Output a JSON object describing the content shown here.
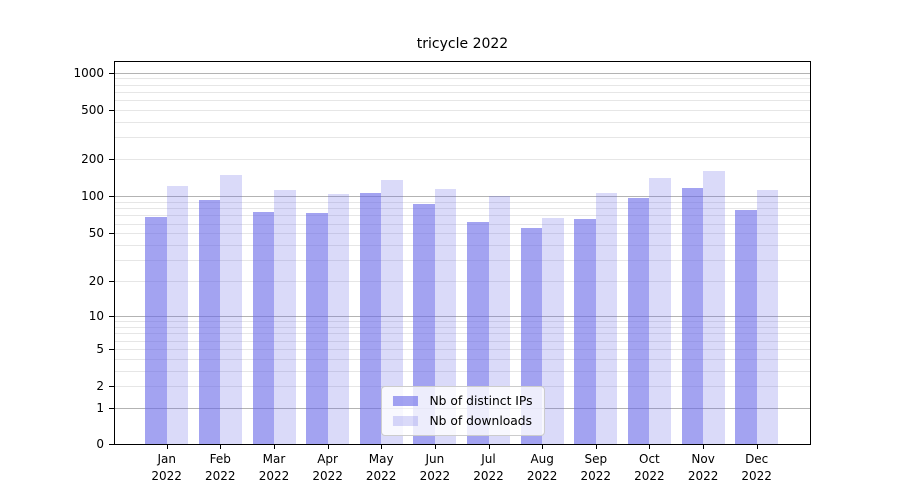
{
  "title": "tricycle 2022",
  "legend": {
    "items": [
      {
        "label": "Nb of distinct IPs",
        "series": "distinct_ips",
        "swatch": "dark-periwinkle-swatch"
      },
      {
        "label": "Nb of downloads",
        "series": "downloads",
        "swatch": "light-periwinkle-swatch"
      }
    ],
    "position": "lower center"
  },
  "colors": {
    "bar_base": "#6565e8",
    "bar_dark_alpha": 0.6,
    "bar_light_alpha": 0.24,
    "grid_major": "#b3b3b3",
    "grid_minor": "#e6e6e6",
    "axis_frame": "#000000",
    "legend_border": "#cccccc"
  },
  "axis": {
    "y_tick_labels": [
      "0",
      "1",
      "2",
      "5",
      "10",
      "20",
      "50",
      "100",
      "200",
      "500",
      "1000"
    ],
    "y_tick_values": [
      0,
      1,
      2,
      5,
      10,
      20,
      50,
      100,
      200,
      500,
      1000
    ],
    "grid_major_values": [
      1,
      10,
      100,
      1000
    ],
    "grid_minor_values": [
      2,
      3,
      4,
      5,
      6,
      7,
      8,
      9,
      20,
      30,
      40,
      50,
      60,
      70,
      80,
      90,
      200,
      300,
      400,
      500,
      600,
      700,
      800,
      900
    ],
    "x_tick_labels": [
      {
        "line1": "Jan",
        "line2": "2022"
      },
      {
        "line1": "Feb",
        "line2": "2022"
      },
      {
        "line1": "Mar",
        "line2": "2022"
      },
      {
        "line1": "Apr",
        "line2": "2022"
      },
      {
        "line1": "May",
        "line2": "2022"
      },
      {
        "line1": "Jun",
        "line2": "2022"
      },
      {
        "line1": "Jul",
        "line2": "2022"
      },
      {
        "line1": "Aug",
        "line2": "2022"
      },
      {
        "line1": "Sep",
        "line2": "2022"
      },
      {
        "line1": "Oct",
        "line2": "2022"
      },
      {
        "line1": "Nov",
        "line2": "2022"
      },
      {
        "line1": "Dec",
        "line2": "2022"
      }
    ]
  },
  "chart_data": {
    "type": "bar",
    "title": "tricycle 2022",
    "categories": [
      "Jan 2022",
      "Feb 2022",
      "Mar 2022",
      "Apr 2022",
      "May 2022",
      "Jun 2022",
      "Jul 2022",
      "Aug 2022",
      "Sep 2022",
      "Oct 2022",
      "Nov 2022",
      "Dec 2022"
    ],
    "series": [
      {
        "name": "Nb of distinct IPs",
        "values": [
          68,
          94,
          74,
          73,
          107,
          87,
          62,
          55,
          66,
          97,
          117,
          78
        ]
      },
      {
        "name": "Nb of downloads",
        "values": [
          121,
          149,
          113,
          105,
          135,
          114,
          101,
          67,
          106,
          141,
          162,
          112
        ]
      }
    ],
    "xlabel": "",
    "ylabel": "",
    "yscale": "log1p",
    "ylim": [
      0,
      1000
    ],
    "yticks": [
      0,
      1,
      2,
      5,
      10,
      20,
      50,
      100,
      200,
      500,
      1000
    ],
    "grid": true,
    "legend_position": "lower center"
  }
}
